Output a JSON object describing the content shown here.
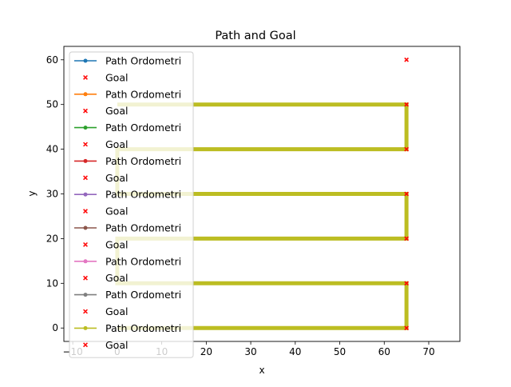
{
  "chart_data": {
    "type": "line",
    "title": "Path and Goal",
    "xlabel": "x",
    "ylabel": "y",
    "xlim": [
      -12,
      77
    ],
    "ylim": [
      -3,
      63
    ],
    "xticks": [
      -10,
      0,
      10,
      20,
      30,
      40,
      50,
      60,
      70
    ],
    "yticks": [
      0,
      10,
      20,
      30,
      40,
      50,
      60
    ],
    "xtick_labels": [
      "−10",
      "0",
      "10",
      "20",
      "30",
      "40",
      "50",
      "60",
      "70"
    ],
    "ytick_labels": [
      "0",
      "10",
      "20",
      "30",
      "40",
      "50",
      "60"
    ],
    "grid": false,
    "legend_position": "upper-left",
    "path": {
      "x": [
        0,
        65,
        65,
        0,
        0,
        65,
        65,
        0,
        0,
        65,
        65,
        0
      ],
      "y": [
        0,
        0,
        10,
        10,
        20,
        20,
        30,
        30,
        40,
        40,
        50,
        50
      ]
    },
    "goals": {
      "x": [
        65,
        65,
        65,
        65,
        65,
        65,
        65
      ],
      "y": [
        0,
        10,
        20,
        30,
        40,
        50,
        60
      ]
    },
    "legend": [
      {
        "label": "Path Ordometri",
        "kind": "line",
        "color": "#1f77b4"
      },
      {
        "label": "Goal",
        "kind": "x",
        "color": "#ff0000"
      },
      {
        "label": "Path Ordometri",
        "kind": "line",
        "color": "#ff7f0e"
      },
      {
        "label": "Goal",
        "kind": "x",
        "color": "#ff0000"
      },
      {
        "label": "Path Ordometri",
        "kind": "line",
        "color": "#2ca02c"
      },
      {
        "label": "Goal",
        "kind": "x",
        "color": "#ff0000"
      },
      {
        "label": "Path Ordometri",
        "kind": "line",
        "color": "#d62728"
      },
      {
        "label": "Goal",
        "kind": "x",
        "color": "#ff0000"
      },
      {
        "label": "Path Ordometri",
        "kind": "line",
        "color": "#9467bd"
      },
      {
        "label": "Goal",
        "kind": "x",
        "color": "#ff0000"
      },
      {
        "label": "Path Ordometri",
        "kind": "line",
        "color": "#8c564b"
      },
      {
        "label": "Goal",
        "kind": "x",
        "color": "#ff0000"
      },
      {
        "label": "Path Ordometri",
        "kind": "line",
        "color": "#e377c2"
      },
      {
        "label": "Goal",
        "kind": "x",
        "color": "#ff0000"
      },
      {
        "label": "Path Ordometri",
        "kind": "line",
        "color": "#7f7f7f"
      },
      {
        "label": "Goal",
        "kind": "x",
        "color": "#ff0000"
      },
      {
        "label": "Path Ordometri",
        "kind": "line",
        "color": "#bcbd22"
      },
      {
        "label": "Goal",
        "kind": "x",
        "color": "#ff0000"
      }
    ],
    "colors": {
      "path": "#bcbd22",
      "goal": "#ff0000"
    }
  }
}
